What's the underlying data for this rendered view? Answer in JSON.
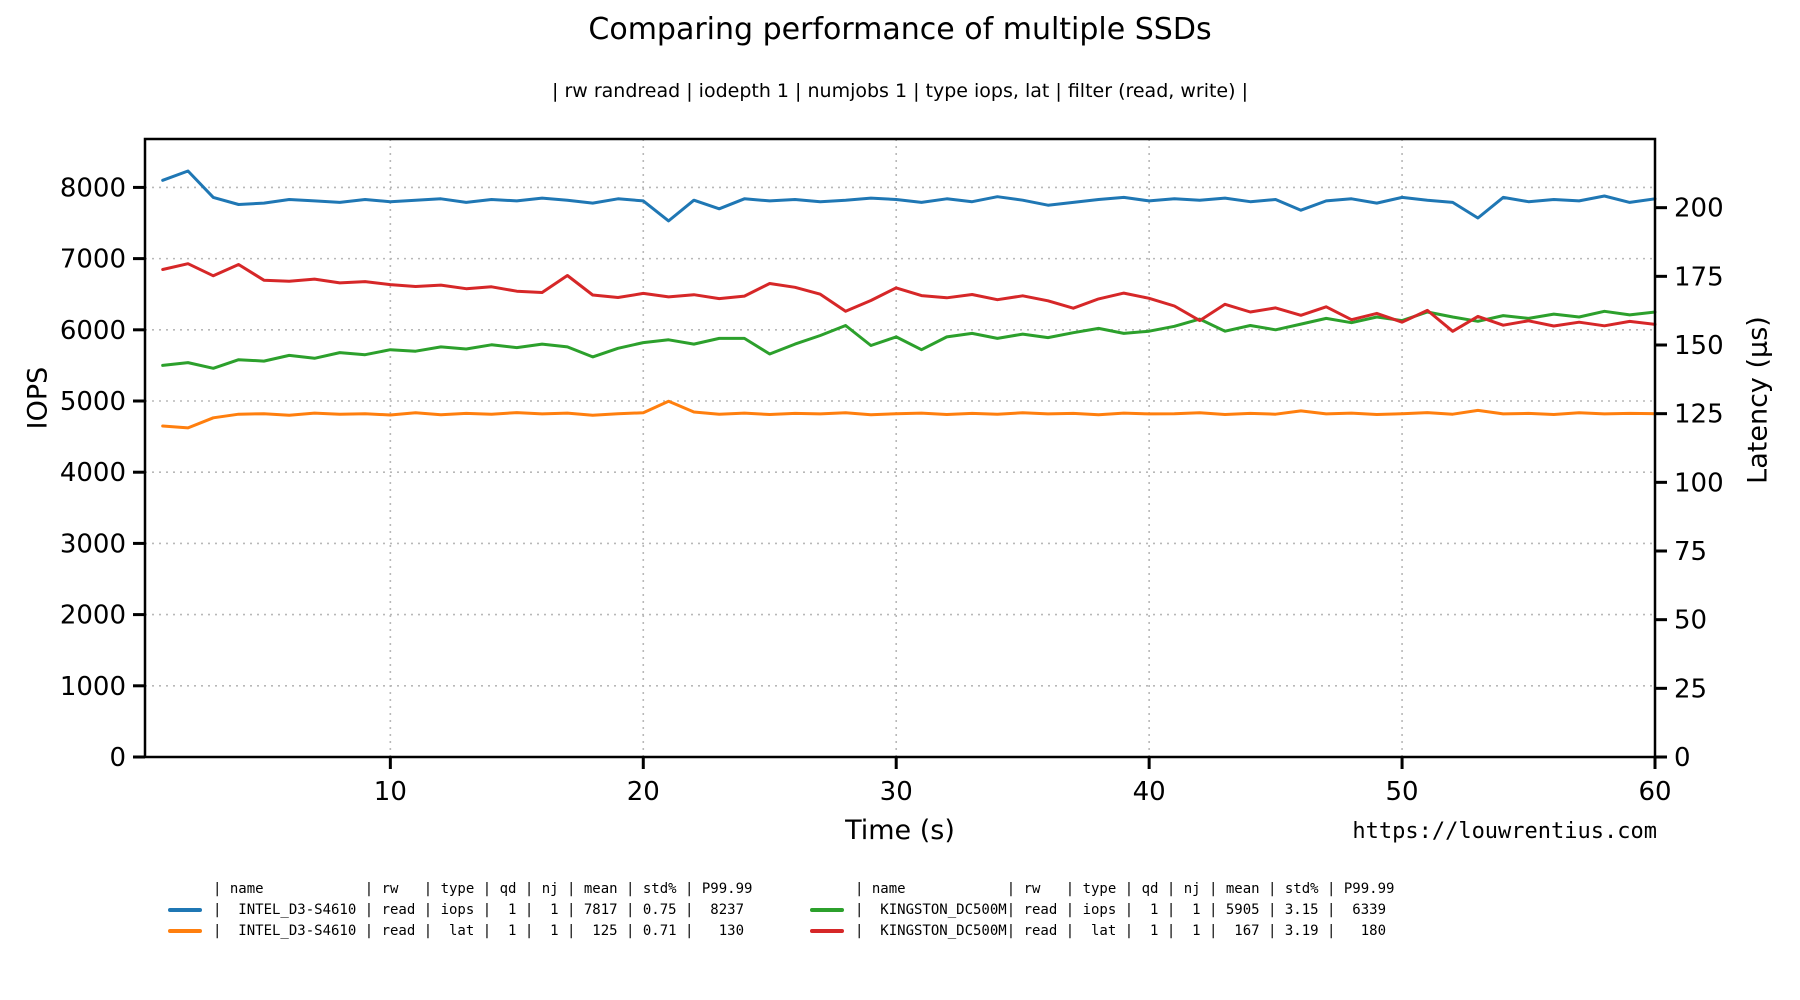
{
  "title": "Comparing performance of multiple SSDs",
  "subtitle": "| rw randread | iodepth 1 | numjobs 1 | type iops, lat | filter (read, write) |",
  "watermark": "https://louwrentius.com",
  "chart_data": {
    "type": "line",
    "xlabel": "Time (s)",
    "ylabel_left": "IOPS",
    "ylabel_right": "Latency (µs)",
    "grid": true,
    "xlim": [
      0.3,
      60
    ],
    "ylim_left": [
      0,
      8680
    ],
    "ylim_right": [
      0,
      225
    ],
    "x_ticks": [
      10,
      20,
      30,
      40,
      50,
      60
    ],
    "y_left_ticks": [
      0,
      1000,
      2000,
      3000,
      4000,
      5000,
      6000,
      7000,
      8000
    ],
    "y_right_ticks": [
      0,
      25,
      50,
      75,
      100,
      125,
      150,
      175,
      200
    ],
    "x_start": 1,
    "x_step": 1,
    "series": [
      {
        "name": "INTEL_D3-S4610 read iops",
        "axis": "left",
        "color": "#1f77b4",
        "values": [
          8100,
          8230,
          7860,
          7760,
          7780,
          7830,
          7810,
          7790,
          7830,
          7800,
          7820,
          7840,
          7790,
          7830,
          7810,
          7850,
          7820,
          7780,
          7840,
          7810,
          7530,
          7820,
          7700,
          7840,
          7810,
          7830,
          7800,
          7820,
          7850,
          7830,
          7790,
          7840,
          7800,
          7870,
          7820,
          7750,
          7790,
          7830,
          7860,
          7810,
          7840,
          7820,
          7850,
          7800,
          7830,
          7680,
          7810,
          7840,
          7780,
          7860,
          7820,
          7790,
          7570,
          7860,
          7800,
          7830,
          7810,
          7880,
          7790,
          7840
        ]
      },
      {
        "name": "INTEL_D3-S4610 read lat",
        "axis": "right",
        "color": "#ff7f0e",
        "values": [
          120.5,
          119.8,
          123.5,
          124.8,
          125.0,
          124.4,
          125.2,
          124.8,
          125.0,
          124.5,
          125.3,
          124.6,
          125.1,
          124.8,
          125.4,
          124.9,
          125.2,
          124.4,
          125.0,
          125.3,
          129.5,
          125.6,
          124.8,
          125.2,
          124.7,
          125.1,
          124.9,
          125.3,
          124.6,
          125.0,
          125.2,
          124.7,
          125.1,
          124.8,
          125.3,
          124.9,
          125.1,
          124.6,
          125.2,
          124.9,
          125.0,
          125.3,
          124.7,
          125.1,
          124.8,
          126.0,
          124.9,
          125.2,
          124.7,
          125.0,
          125.4,
          124.8,
          126.2,
          124.9,
          125.1,
          124.7,
          125.3,
          124.9,
          125.1,
          125.0
        ]
      },
      {
        "name": "KINGSTON_DC500M read iops",
        "axis": "left",
        "color": "#2ca02c",
        "values": [
          5500,
          5540,
          5460,
          5580,
          5560,
          5640,
          5600,
          5680,
          5650,
          5720,
          5700,
          5760,
          5730,
          5790,
          5750,
          5800,
          5760,
          5620,
          5740,
          5820,
          5860,
          5800,
          5880,
          5880,
          5660,
          5800,
          5920,
          6060,
          5780,
          5900,
          5720,
          5900,
          5950,
          5880,
          5940,
          5890,
          5960,
          6020,
          5950,
          5980,
          6050,
          6150,
          5980,
          6060,
          6000,
          6080,
          6160,
          6100,
          6180,
          6130,
          6250,
          6180,
          6120,
          6200,
          6160,
          6220,
          6180,
          6260,
          6210,
          6250
        ]
      },
      {
        "name": "KINGSTON_DC500M read lat",
        "axis": "right",
        "color": "#d62728",
        "values": [
          177.5,
          179.6,
          175.2,
          179.3,
          173.6,
          173.2,
          174.0,
          172.6,
          173.1,
          172.0,
          171.3,
          171.8,
          170.5,
          171.2,
          169.6,
          169.1,
          175.3,
          168.2,
          167.3,
          168.8,
          167.5,
          168.3,
          166.9,
          167.8,
          172.4,
          171.0,
          168.5,
          162.3,
          166.2,
          170.8,
          168.0,
          167.2,
          168.4,
          166.5,
          167.9,
          166.1,
          163.4,
          166.8,
          168.9,
          167.0,
          164.2,
          158.9,
          164.8,
          162.0,
          163.5,
          160.8,
          163.9,
          159.2,
          161.5,
          158.3,
          162.6,
          155.0,
          160.4,
          157.2,
          158.8,
          156.9,
          158.3,
          157.0,
          158.6,
          157.5
        ]
      }
    ]
  },
  "legend": {
    "columns": [
      {
        "label": "name",
        "width": 17,
        "align": "name"
      },
      {
        "label": "rw",
        "width": 6,
        "align": "right"
      },
      {
        "label": "type",
        "width": 6,
        "align": "right"
      },
      {
        "label": "qd",
        "width": 4,
        "align": "right"
      },
      {
        "label": "nj",
        "width": 4,
        "align": "right"
      },
      {
        "label": "mean",
        "width": 6,
        "align": "right"
      },
      {
        "label": "std%",
        "width": 6,
        "align": "right"
      },
      {
        "label": "P99.99",
        "width": 7,
        "align": "right-flush"
      }
    ],
    "tables": [
      {
        "rows": [
          {
            "color": "#1f77b4",
            "cells": [
              "INTEL_D3-S4610",
              "read",
              "iops",
              "1",
              "1",
              "7817",
              "0.75",
              "8237"
            ]
          },
          {
            "color": "#ff7f0e",
            "cells": [
              "INTEL_D3-S4610",
              "read",
              "lat",
              "1",
              "1",
              "125",
              "0.71",
              "130"
            ]
          }
        ]
      },
      {
        "rows": [
          {
            "color": "#2ca02c",
            "cells": [
              "KINGSTON_DC500M",
              "read",
              "iops",
              "1",
              "1",
              "5905",
              "3.15",
              "6339"
            ]
          },
          {
            "color": "#d62728",
            "cells": [
              "KINGSTON_DC500M",
              "read",
              "lat",
              "1",
              "1",
              "167",
              "3.19",
              "180"
            ]
          }
        ]
      }
    ]
  },
  "style": {
    "grid_color": "#b8b8b8",
    "spine_color": "#000000"
  }
}
